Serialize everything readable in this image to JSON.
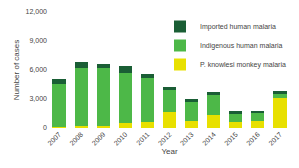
{
  "chart_data": {
    "type": "bar",
    "stacked": true,
    "xlabel": "Year",
    "ylabel": "Number of cases",
    "categories": [
      "2007",
      "2008",
      "2009",
      "2010",
      "2011",
      "2012",
      "2013",
      "2014",
      "2015",
      "2016",
      "2017"
    ],
    "series": [
      {
        "name": "P. knowlesi monkey malaria",
        "color": "#e8e000",
        "values": [
          100,
          200,
          200,
          500,
          600,
          1700,
          700,
          1300,
          650,
          700,
          3100
        ]
      },
      {
        "name": "Indigenous human malaria",
        "color": "#4db848",
        "values": [
          4500,
          6000,
          6000,
          5200,
          4600,
          2200,
          2000,
          2100,
          900,
          900,
          500
        ]
      },
      {
        "name": "Imported human malaria",
        "color": "#1a5e35",
        "values": [
          500,
          600,
          400,
          700,
          350,
          350,
          350,
          350,
          200,
          200,
          200
        ]
      }
    ],
    "ylim": [
      0,
      12000
    ],
    "yticks": [
      0,
      {
        "value": 3000,
        "label": "3,000"
      },
      {
        "value": 6000,
        "label": "6,000"
      },
      {
        "value": 9000,
        "label": "9,000"
      },
      {
        "value": 12000,
        "label": "12,000"
      }
    ],
    "grid": false,
    "legend": "upper right"
  }
}
